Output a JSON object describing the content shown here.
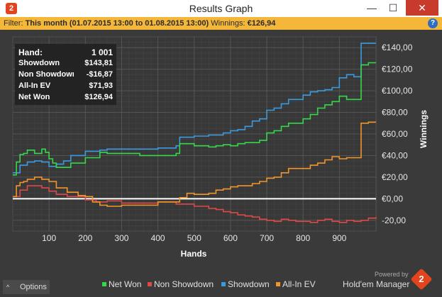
{
  "window": {
    "title": "Results Graph",
    "app_icon": "2",
    "minimize_glyph": "—",
    "maximize_glyph": "☐",
    "close_glyph": "✕"
  },
  "filter": {
    "prefix": "Filter: ",
    "range": "This month (01.07.2015 13:00 to 01.08.2015 13:00)",
    "winnings_label": "  Winnings: ",
    "winnings_value": "€126,94",
    "help_glyph": "?"
  },
  "stats": {
    "hand_label": "Hand:",
    "hand_value": "1 001",
    "showdown_label": "Showdown",
    "showdown_value": "$143,81",
    "non_showdown_label": "Non Showdown",
    "non_showdown_value": "-$16,87",
    "allin_label": "All-In EV",
    "allin_value": "$71,93",
    "netwon_label": "Net Won",
    "netwon_value": "$126,94"
  },
  "chart_data": {
    "type": "line",
    "xlabel": "Hands",
    "ylabel": "Winnings",
    "xlim": [
      0,
      1001
    ],
    "ylim": [
      -30,
      150
    ],
    "x_ticks": [
      100,
      200,
      300,
      400,
      500,
      600,
      700,
      800,
      900
    ],
    "x_tick_labels": [
      "100",
      "200",
      "300",
      "400",
      "500",
      "600",
      "700",
      "800",
      "900"
    ],
    "y_ticks": [
      -20,
      0,
      20,
      40,
      60,
      80,
      100,
      120,
      140
    ],
    "y_tick_labels": [
      "-20,00",
      "€0,00",
      "€20,00",
      "€40,00",
      "€60,00",
      "€80,00",
      "€100,00",
      "€120,00",
      "€140,00"
    ],
    "grid": true,
    "legend_position": "bottom",
    "series": [
      {
        "name": "Showdown",
        "color": "#3a9be0",
        "x": [
          0,
          20,
          40,
          60,
          80,
          100,
          120,
          140,
          160,
          200,
          240,
          260,
          300,
          350,
          400,
          450,
          460,
          500,
          540,
          560,
          580,
          600,
          620,
          640,
          660,
          680,
          700,
          720,
          740,
          760,
          780,
          800,
          820,
          840,
          860,
          880,
          900,
          920,
          940,
          960,
          980,
          1001
        ],
        "y": [
          24,
          31,
          34,
          35,
          34,
          30,
          32,
          35,
          40,
          44,
          45,
          46,
          46,
          46,
          47,
          49,
          57,
          58,
          59,
          59,
          61,
          63,
          64,
          67,
          72,
          74,
          82,
          84,
          88,
          92,
          92,
          96,
          99,
          100,
          101,
          103,
          112,
          115,
          113,
          144,
          144,
          144
        ]
      },
      {
        "name": "Net Won",
        "color": "#35d84a",
        "x": [
          0,
          10,
          20,
          30,
          40,
          60,
          80,
          90,
          100,
          110,
          120,
          140,
          160,
          200,
          240,
          260,
          300,
          350,
          400,
          450,
          460,
          500,
          540,
          560,
          580,
          600,
          620,
          640,
          660,
          680,
          700,
          720,
          740,
          760,
          780,
          800,
          820,
          840,
          860,
          880,
          900,
          920,
          940,
          960,
          980,
          1001
        ],
        "y": [
          22,
          34,
          41,
          42,
          45,
          42,
          46,
          43,
          37,
          33,
          29,
          29,
          33,
          38,
          43,
          42,
          42,
          40,
          40,
          42,
          51,
          49,
          48,
          49,
          50,
          49,
          51,
          52,
          52,
          54,
          61,
          63,
          67,
          70,
          70,
          74,
          78,
          84,
          87,
          90,
          95,
          92,
          92,
          124,
          126,
          126
        ]
      },
      {
        "name": "Non Showdown",
        "color": "#e04848",
        "x": [
          0,
          20,
          40,
          60,
          80,
          100,
          120,
          150,
          200,
          230,
          260,
          300,
          350,
          400,
          450,
          500,
          540,
          560,
          580,
          600,
          620,
          640,
          660,
          680,
          700,
          720,
          740,
          760,
          780,
          800,
          820,
          840,
          860,
          880,
          900,
          920,
          940,
          960,
          980,
          1001
        ],
        "y": [
          2,
          8,
          12,
          12,
          10,
          7,
          4,
          2,
          -1,
          -3,
          -2,
          -4,
          -4,
          -3,
          -5,
          -7,
          -9,
          -10,
          -12,
          -13,
          -15,
          -16,
          -17,
          -19,
          -20,
          -21,
          -19,
          -20,
          -21,
          -21,
          -22,
          -20,
          -19,
          -21,
          -22,
          -20,
          -21,
          -20,
          -18,
          -17
        ]
      },
      {
        "name": "All-In EV",
        "color": "#f2952b",
        "x": [
          0,
          10,
          20,
          30,
          40,
          60,
          80,
          100,
          120,
          150,
          180,
          200,
          220,
          240,
          260,
          300,
          350,
          400,
          450,
          460,
          480,
          500,
          540,
          560,
          580,
          600,
          620,
          640,
          660,
          680,
          700,
          720,
          740,
          760,
          780,
          800,
          820,
          840,
          860,
          880,
          900,
          920,
          940,
          960,
          980,
          1001
        ],
        "y": [
          2,
          12,
          15,
          16,
          18,
          20,
          18,
          16,
          10,
          6,
          3,
          2,
          -3,
          -6,
          -7,
          -6,
          -6,
          -3,
          -3,
          1,
          5,
          4,
          5,
          8,
          9,
          11,
          12,
          12,
          14,
          16,
          19,
          20,
          24,
          28,
          28,
          28,
          31,
          33,
          36,
          39,
          37,
          38,
          38,
          70,
          71,
          71
        ]
      }
    ]
  },
  "legend": [
    {
      "label": "Net Won",
      "color": "#35d84a"
    },
    {
      "label": "Non Showdown",
      "color": "#e04848"
    },
    {
      "label": "Showdown",
      "color": "#3a9be0"
    },
    {
      "label": "All-In EV",
      "color": "#f2952b"
    }
  ],
  "options": {
    "caret": "^",
    "label": "Options"
  },
  "branding": {
    "powered": "Powered by",
    "name": "Hold'em Manager",
    "logo": "2"
  }
}
